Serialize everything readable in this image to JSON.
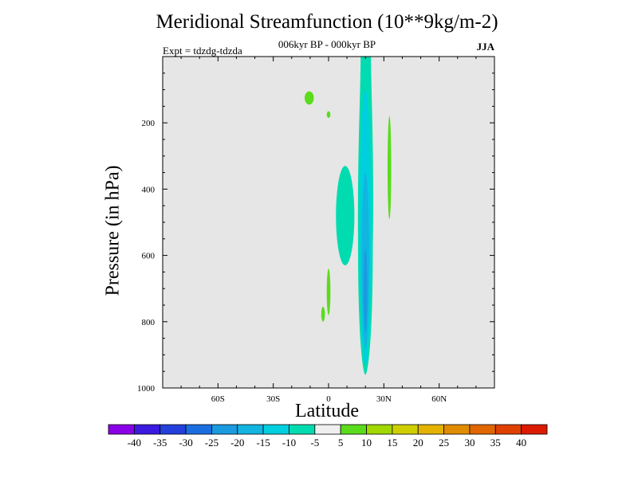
{
  "chart_data": {
    "type": "heatmap",
    "title": "Meridional Streamfunction (10**9kg/m-2)",
    "subtitle": "006kyr BP - 000kyr BP",
    "left_label": "Expt = tdzdg-tdzda",
    "right_label": "JJA",
    "xlabel": "Latitude",
    "ylabel": "Pressure (in hPa)",
    "xlim": [
      -90,
      90
    ],
    "ylim": [
      1000,
      0
    ],
    "x_ticks": [
      {
        "value": -60,
        "label": "60S"
      },
      {
        "value": -30,
        "label": "30S"
      },
      {
        "value": 0,
        "label": "0"
      },
      {
        "value": 30,
        "label": "30N"
      },
      {
        "value": 60,
        "label": "60N"
      }
    ],
    "y_ticks": [
      {
        "value": 200,
        "label": "200"
      },
      {
        "value": 400,
        "label": "400"
      },
      {
        "value": 600,
        "label": "600"
      },
      {
        "value": 800,
        "label": "800"
      },
      {
        "value": 1000,
        "label": "1000"
      }
    ],
    "background_color": "#e6e6e6",
    "colorbar": {
      "levels": [
        "-40",
        "-35",
        "-30",
        "-25",
        "-20",
        "-15",
        "-10",
        "-5",
        "5",
        "10",
        "15",
        "20",
        "25",
        "30",
        "35",
        "40"
      ],
      "colors": [
        "#8a00e6",
        "#3a1adf",
        "#2340dd",
        "#1a6fe0",
        "#1a9ae0",
        "#12b4e0",
        "#00cfdf",
        "#00dcb0",
        "#efefef",
        "#5adc1c",
        "#a0d800",
        "#cfcf00",
        "#e3b300",
        "#e08c00",
        "#e06600",
        "#df4000",
        "#db1a00"
      ]
    },
    "features": [
      {
        "name": "main-negative-cell",
        "lat": [
          16,
          24
        ],
        "p": [
          0,
          960
        ],
        "color": "#00dcb0",
        "min_level": "-10"
      },
      {
        "name": "core-negative-inner",
        "lat": [
          17,
          23
        ],
        "p": [
          100,
          930
        ],
        "color": "#00cfdf"
      },
      {
        "name": "core-negative-mid",
        "lat": [
          18,
          22
        ],
        "p": [
          350,
          880
        ],
        "color": "#12b4e0"
      },
      {
        "name": "core-negative-deep",
        "lat": [
          19,
          21
        ],
        "p": [
          580,
          830
        ],
        "color": "#1a9ae0"
      },
      {
        "name": "secondary-negative-cell",
        "lat": [
          4,
          14
        ],
        "p": [
          330,
          630
        ],
        "color": "#00dcb0"
      },
      {
        "name": "positive-cell-upper-sh",
        "lat": [
          -13,
          -8
        ],
        "p": [
          105,
          145
        ],
        "color": "#5adc1c"
      },
      {
        "name": "positive-cell-small-sh",
        "lat": [
          -1,
          1
        ],
        "p": [
          165,
          185
        ],
        "color": "#5adc1c"
      },
      {
        "name": "positive-cell-nh",
        "lat": [
          32,
          34
        ],
        "p": [
          180,
          490
        ],
        "color": "#5adc1c"
      },
      {
        "name": "positive-cell-lower-a",
        "lat": [
          -1,
          1
        ],
        "p": [
          640,
          780
        ],
        "color": "#5adc1c"
      },
      {
        "name": "positive-cell-lower-b",
        "lat": [
          -4,
          -2
        ],
        "p": [
          755,
          800
        ],
        "color": "#5adc1c"
      }
    ]
  }
}
